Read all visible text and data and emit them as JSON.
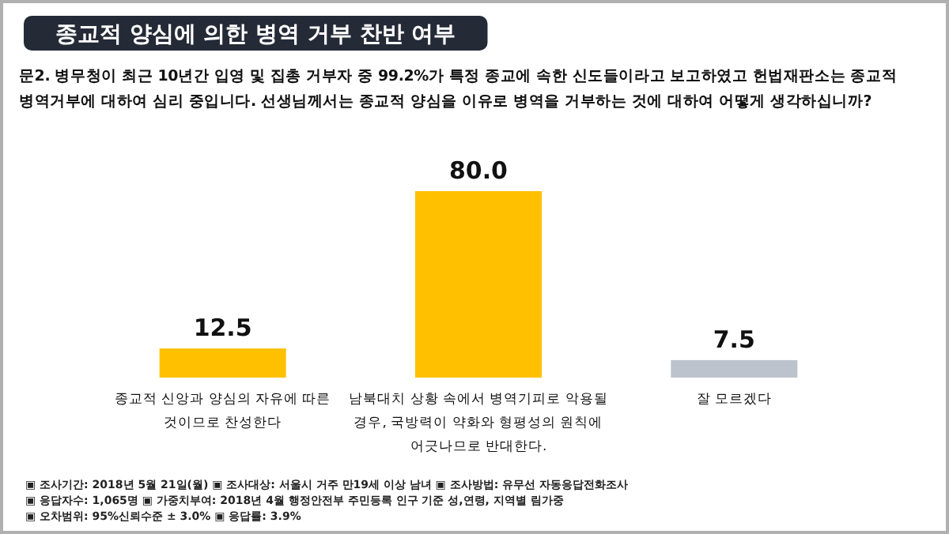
{
  "chart_data": {
    "type": "bar",
    "title": "종교적 양심에 의한 병역 거부 찬반 여부",
    "subtitle": "문2. 병무청이 최근 10년간 입영 및 집총 거부자 중 99.2%가 특정 종교에 속한 신도들이라고 보고하였고 헌법재판소는 종교적 병역거부에 대하여 심리 중입니다. 선생님께서는 종교적 양심을 이유로 병역을 거부하는 것에 대하여 어떻게 생각하십니까?",
    "categories": [
      "종교적 신앙과 양심의 자유에 따른 것이므로 찬성한다",
      "남북대치 상황 속에서 병역기피로 악용될 경우, 국방력이 약화와 형평성의 원칙에 어긋나므로 반대한다.",
      "잘 모르겠다"
    ],
    "values": [
      12.5,
      80.0,
      7.5
    ],
    "value_labels": [
      "12.5",
      "80.0",
      "7.5"
    ],
    "colors": [
      "#ffc000",
      "#ffc000",
      "#bcc3cc"
    ],
    "annotations": [
      "▣ 조사기간: 2018년 5월 21일(월) ▣ 조사대상: 서울시 거주 만19세 이상 남녀 ▣ 조사방법: 유무선 자동응답전화조사",
      "▣ 응답자수: 1,065명 ▣ 가중치부여: 2018년 4월 행정안전부 주민등록 인구 기준 성,연령, 지역별 림가중",
      "▣ 오차범위: 95%신뢰수준 ± 3.0% ▣ 응답률: 3.9%"
    ]
  }
}
